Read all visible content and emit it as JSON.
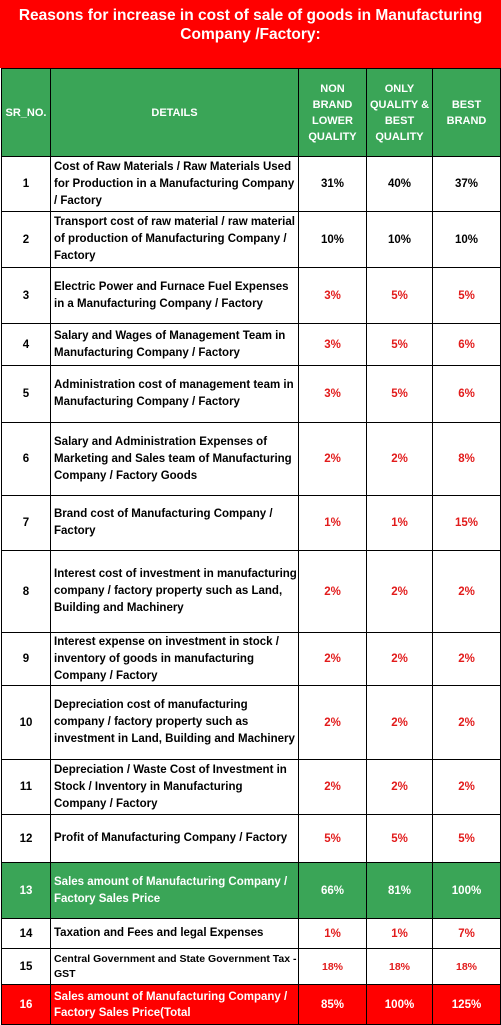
{
  "title": "Reasons for increase in cost of sale of goods in Manufacturing Company /Factory:",
  "headers": {
    "sr": "SR_NO.",
    "details": "DETAILS",
    "non_brand": "NON BRAND LOWER QUALITY",
    "only_quality": "ONLY QUALITY & BEST QUALITY",
    "best_brand": "BEST BRAND"
  },
  "rows": [
    {
      "sr": "1",
      "details": "Cost of Raw Materials / Raw Materials Used for Production in a Manufacturing Company / Factory",
      "non_brand": "31%",
      "only_quality": "40%",
      "best_brand": "37%",
      "color": "black"
    },
    {
      "sr": "2",
      "details": "Transport cost of raw material / raw material of production of Manufacturing Company / Factory",
      "non_brand": "10%",
      "only_quality": "10%",
      "best_brand": "10%",
      "color": "black"
    },
    {
      "sr": "3",
      "details": "Electric Power and Furnace Fuel Expenses in a Manufacturing Company / Factory",
      "non_brand": "3%",
      "only_quality": "5%",
      "best_brand": "5%",
      "color": "red"
    },
    {
      "sr": "4",
      "details": "Salary and Wages of Management Team in Manufacturing Company / Factory",
      "non_brand": "3%",
      "only_quality": "5%",
      "best_brand": "6%",
      "color": "red"
    },
    {
      "sr": "5",
      "details": "Administration cost of management team in Manufacturing Company / Factory",
      "non_brand": "3%",
      "only_quality": "5%",
      "best_brand": "6%",
      "color": "red"
    },
    {
      "sr": "6",
      "details": "Salary and Administration Expenses of Marketing and Sales team of Manufacturing Company / Factory Goods",
      "non_brand": "2%",
      "only_quality": "2%",
      "best_brand": "8%",
      "color": "red"
    },
    {
      "sr": "7",
      "details": "Brand cost of Manufacturing Company / Factory",
      "non_brand": "1%",
      "only_quality": "1%",
      "best_brand": "15%",
      "color": "red"
    },
    {
      "sr": "8",
      "details": "Interest cost of investment in manufacturing company / factory property such as Land, Building and Machinery",
      "non_brand": "2%",
      "only_quality": "2%",
      "best_brand": "2%",
      "color": "red"
    },
    {
      "sr": "9",
      "details": "Interest expense on investment in stock / inventory of goods in manufacturing Company / Factory",
      "non_brand": "2%",
      "only_quality": "2%",
      "best_brand": "2%",
      "color": "red"
    },
    {
      "sr": "10",
      "details": "Depreciation cost of manufacturing company / factory property such as investment in Land, Building and Machinery",
      "non_brand": "2%",
      "only_quality": "2%",
      "best_brand": "2%",
      "color": "red"
    },
    {
      "sr": "11",
      "details": "Depreciation / Waste Cost of Investment in Stock / Inventory in Manufacturing Company / Factory",
      "non_brand": "2%",
      "only_quality": "2%",
      "best_brand": "2%",
      "color": "red"
    },
    {
      "sr": "12",
      "details": "Profit of Manufacturing Company / Factory",
      "non_brand": "5%",
      "only_quality": "5%",
      "best_brand": "5%",
      "color": "red"
    },
    {
      "sr": "13",
      "details": "Sales amount of Manufacturing Company / Factory Sales Price",
      "non_brand": "66%",
      "only_quality": "81%",
      "best_brand": "100%",
      "color": "white"
    },
    {
      "sr": "14",
      "details": "Taxation and Fees and legal Expenses",
      "non_brand": "1%",
      "only_quality": "1%",
      "best_brand": "7%",
      "color": "red"
    },
    {
      "sr": "15",
      "details": "Central Government and State Government Tax - GST",
      "non_brand": "18%",
      "only_quality": "18%",
      "best_brand": "18%",
      "color": "red"
    },
    {
      "sr": "16",
      "details": "Sales amount of Manufacturing Company / Factory Sales Price(Total",
      "non_brand": "85%",
      "only_quality": "100%",
      "best_brand": "125%",
      "color": "white"
    }
  ],
  "colors": {
    "title_bg": "#ff0000",
    "header_bg": "#3aa557",
    "highlight_green": "#3aa557",
    "highlight_red": "#ff0000",
    "value_red": "#e21b1b"
  }
}
